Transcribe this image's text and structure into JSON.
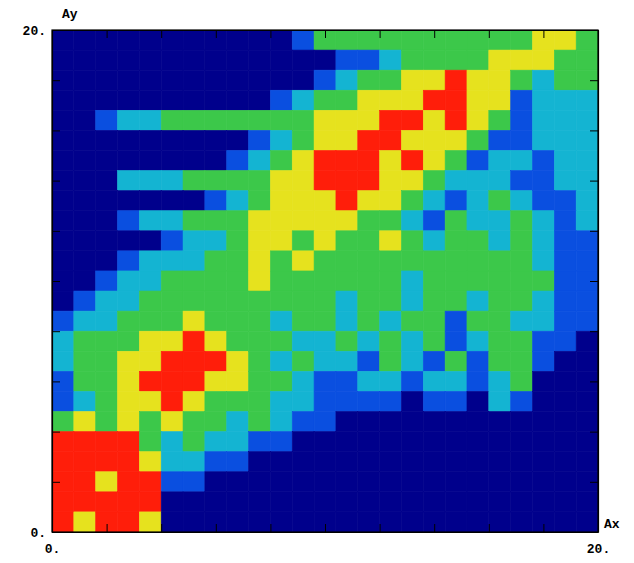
{
  "chart_data": {
    "type": "heatmap",
    "x_label": "Ax",
    "y_label": "Ay",
    "xlim": [
      0,
      20
    ],
    "ylim": [
      0,
      20
    ],
    "xticks": [
      {
        "value": 0,
        "label": "0."
      },
      {
        "value": 2,
        "label": null
      },
      {
        "value": 4,
        "label": null
      },
      {
        "value": 6,
        "label": null
      },
      {
        "value": 8,
        "label": null
      },
      {
        "value": 10,
        "label": null
      },
      {
        "value": 12,
        "label": null
      },
      {
        "value": 14,
        "label": null
      },
      {
        "value": 16,
        "label": null
      },
      {
        "value": 18,
        "label": null
      },
      {
        "value": 20,
        "label": "20."
      }
    ],
    "yticks": [
      {
        "value": 0,
        "label": "0."
      },
      {
        "value": 2,
        "label": null
      },
      {
        "value": 4,
        "label": null
      },
      {
        "value": 6,
        "label": null
      },
      {
        "value": 8,
        "label": null
      },
      {
        "value": 10,
        "label": null
      },
      {
        "value": 12,
        "label": null
      },
      {
        "value": 14,
        "label": null
      },
      {
        "value": 16,
        "label": null
      },
      {
        "value": 18,
        "label": null
      },
      {
        "value": 20,
        "label": "20."
      }
    ],
    "xbins": [
      0,
      0.8,
      1.6,
      2.4,
      3.2,
      4,
      4.8,
      5.6,
      6.4,
      7.2,
      8,
      8.8,
      9.6,
      10.4,
      11.2,
      12,
      12.8,
      13.6,
      14.4,
      15.2,
      16,
      16.8,
      17.6,
      18.4,
      19.2,
      20
    ],
    "ybins": [
      20,
      19.2,
      18.4,
      17.6,
      16.8,
      16,
      15.2,
      14.4,
      13.6,
      12.8,
      12,
      11.2,
      10.4,
      9.6,
      8.8,
      8,
      7.2,
      6.4,
      5.6,
      4.8,
      4,
      3.2,
      2.4,
      1.6,
      0.8,
      0
    ],
    "cells": [
      [
        0,
        0,
        0,
        0,
        0,
        0,
        0,
        0,
        0,
        0,
        0,
        1,
        3,
        3,
        3,
        3,
        3,
        3,
        3,
        3,
        3,
        3,
        4,
        4,
        3
      ],
      [
        0,
        0,
        0,
        0,
        0,
        0,
        0,
        0,
        0,
        0,
        0,
        0,
        0,
        1,
        1,
        2,
        3,
        3,
        3,
        3,
        4,
        4,
        4,
        3,
        3
      ],
      [
        0,
        0,
        0,
        0,
        0,
        0,
        0,
        0,
        0,
        0,
        0,
        0,
        1,
        2,
        3,
        3,
        4,
        4,
        5,
        4,
        4,
        3,
        2,
        3,
        3
      ],
      [
        0,
        0,
        0,
        0,
        0,
        0,
        0,
        0,
        0,
        0,
        1,
        2,
        3,
        3,
        4,
        4,
        4,
        5,
        5,
        4,
        4,
        1,
        2,
        2,
        2
      ],
      [
        0,
        0,
        1,
        2,
        2,
        3,
        3,
        3,
        3,
        3,
        3,
        3,
        4,
        4,
        4,
        5,
        5,
        4,
        5,
        4,
        3,
        1,
        2,
        2,
        2
      ],
      [
        0,
        0,
        0,
        0,
        0,
        0,
        0,
        0,
        0,
        1,
        2,
        3,
        4,
        4,
        5,
        5,
        4,
        4,
        4,
        3,
        1,
        1,
        2,
        2,
        2
      ],
      [
        0,
        0,
        0,
        0,
        0,
        0,
        0,
        0,
        1,
        2,
        3,
        4,
        5,
        5,
        5,
        4,
        5,
        4,
        3,
        1,
        2,
        2,
        1,
        2,
        2
      ],
      [
        0,
        0,
        0,
        2,
        2,
        2,
        3,
        3,
        3,
        3,
        4,
        4,
        5,
        5,
        5,
        4,
        4,
        3,
        2,
        2,
        2,
        1,
        1,
        2,
        2
      ],
      [
        0,
        0,
        0,
        0,
        0,
        0,
        0,
        1,
        2,
        3,
        4,
        4,
        4,
        5,
        4,
        4,
        3,
        2,
        1,
        2,
        3,
        2,
        1,
        1,
        2
      ],
      [
        0,
        0,
        0,
        1,
        2,
        2,
        3,
        3,
        3,
        4,
        4,
        4,
        4,
        4,
        3,
        3,
        2,
        1,
        3,
        2,
        2,
        3,
        2,
        1,
        2
      ],
      [
        0,
        0,
        0,
        0,
        0,
        1,
        2,
        2,
        3,
        4,
        4,
        3,
        4,
        3,
        3,
        4,
        3,
        2,
        3,
        3,
        2,
        3,
        2,
        1,
        1
      ],
      [
        0,
        0,
        0,
        1,
        2,
        2,
        2,
        3,
        3,
        4,
        3,
        4,
        3,
        3,
        3,
        3,
        3,
        3,
        3,
        3,
        3,
        3,
        2,
        1,
        1
      ],
      [
        0,
        0,
        1,
        2,
        2,
        3,
        3,
        3,
        3,
        4,
        3,
        3,
        3,
        3,
        3,
        3,
        2,
        3,
        3,
        3,
        3,
        3,
        3,
        1,
        1
      ],
      [
        0,
        1,
        2,
        2,
        3,
        3,
        3,
        3,
        3,
        3,
        3,
        3,
        3,
        2,
        3,
        3,
        2,
        3,
        3,
        2,
        3,
        3,
        2,
        1,
        1
      ],
      [
        1,
        2,
        2,
        3,
        3,
        3,
        4,
        3,
        3,
        3,
        2,
        3,
        3,
        2,
        3,
        2,
        3,
        3,
        1,
        3,
        3,
        2,
        2,
        1,
        1
      ],
      [
        2,
        3,
        3,
        3,
        4,
        4,
        5,
        4,
        3,
        3,
        3,
        2,
        2,
        3,
        2,
        3,
        2,
        3,
        1,
        2,
        3,
        3,
        1,
        1,
        0
      ],
      [
        2,
        3,
        3,
        4,
        4,
        5,
        5,
        5,
        4,
        3,
        2,
        3,
        2,
        2,
        1,
        3,
        2,
        1,
        3,
        1,
        3,
        3,
        1,
        0,
        0
      ],
      [
        1,
        3,
        3,
        4,
        5,
        5,
        5,
        4,
        4,
        3,
        3,
        2,
        1,
        1,
        2,
        2,
        1,
        2,
        2,
        1,
        2,
        3,
        0,
        0,
        0
      ],
      [
        1,
        2,
        3,
        4,
        4,
        5,
        4,
        3,
        3,
        3,
        2,
        2,
        1,
        1,
        1,
        1,
        0,
        1,
        1,
        0,
        2,
        1,
        0,
        0,
        0
      ],
      [
        3,
        4,
        3,
        4,
        3,
        4,
        3,
        3,
        2,
        3,
        2,
        1,
        1,
        0,
        0,
        0,
        0,
        0,
        0,
        0,
        0,
        0,
        0,
        0,
        0
      ],
      [
        5,
        5,
        5,
        5,
        3,
        2,
        3,
        2,
        2,
        1,
        1,
        0,
        0,
        0,
        0,
        0,
        0,
        0,
        0,
        0,
        0,
        0,
        0,
        0,
        0
      ],
      [
        5,
        5,
        5,
        5,
        4,
        2,
        2,
        1,
        1,
        0,
        0,
        0,
        0,
        0,
        0,
        0,
        0,
        0,
        0,
        0,
        0,
        0,
        0,
        0,
        0
      ],
      [
        5,
        5,
        4,
        5,
        5,
        1,
        1,
        0,
        0,
        0,
        0,
        0,
        0,
        0,
        0,
        0,
        0,
        0,
        0,
        0,
        0,
        0,
        0,
        0,
        0
      ],
      [
        5,
        5,
        5,
        5,
        5,
        0,
        0,
        0,
        0,
        0,
        0,
        0,
        0,
        0,
        0,
        0,
        0,
        0,
        0,
        0,
        0,
        0,
        0,
        0,
        0
      ],
      [
        5,
        4,
        5,
        5,
        4,
        0,
        0,
        0,
        0,
        0,
        0,
        0,
        0,
        0,
        0,
        0,
        0,
        0,
        0,
        0,
        0,
        0,
        0,
        0,
        0
      ]
    ],
    "zlim": [
      0,
      5
    ],
    "colors": [
      "#00008c",
      "#0a4fe0",
      "#14b4d2",
      "#3cc84a",
      "#e6e21e",
      "#ff1e0a"
    ]
  }
}
